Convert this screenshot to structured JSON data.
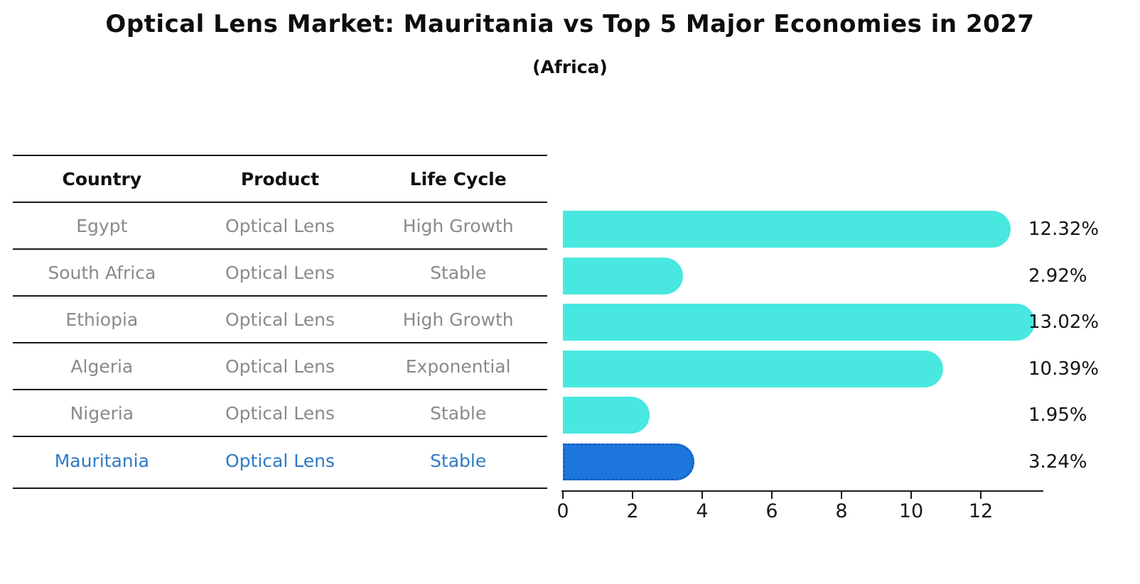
{
  "title": "Optical Lens Market: Mauritania vs Top 5 Major Economies in 2027",
  "subtitle": "(Africa)",
  "table": {
    "headers": [
      "Country",
      "Product",
      "Life Cycle"
    ],
    "rows": [
      {
        "country": "Egypt",
        "product": "Optical Lens",
        "life_cycle": "High Growth",
        "highlight": false
      },
      {
        "country": "South Africa",
        "product": "Optical Lens",
        "life_cycle": "Stable",
        "highlight": false
      },
      {
        "country": "Ethiopia",
        "product": "Optical Lens",
        "life_cycle": "High Growth",
        "highlight": false
      },
      {
        "country": "Algeria",
        "product": "Optical Lens",
        "life_cycle": "Exponential",
        "highlight": false
      },
      {
        "country": "Nigeria",
        "product": "Optical Lens",
        "life_cycle": "Stable",
        "highlight": false
      },
      {
        "country": "Mauritania",
        "product": "Optical Lens",
        "life_cycle": "Stable",
        "highlight": true
      }
    ]
  },
  "chart_data": {
    "type": "bar",
    "orientation": "horizontal",
    "title": "Optical Lens Market: Mauritania vs Top 5 Major Economies in 2027",
    "subtitle": "(Africa)",
    "categories": [
      "Egypt",
      "South Africa",
      "Ethiopia",
      "Algeria",
      "Nigeria",
      "Mauritania"
    ],
    "values": [
      12.32,
      2.92,
      13.02,
      10.39,
      1.95,
      3.24
    ],
    "value_labels": [
      "12.32%",
      "2.92%",
      "13.02%",
      "10.39%",
      "1.95%",
      "3.24%"
    ],
    "x_ticks": [
      0,
      2,
      4,
      6,
      8,
      10,
      12
    ],
    "xlim": [
      0,
      13.8
    ],
    "grid": false,
    "legend": "none",
    "highlight_index": 5,
    "bar_color": "#48e8e0",
    "highlight_bar_color": "#1c76db",
    "highlight_text_color": "#2e7ac6",
    "text_color_muted": "#8a8a8a",
    "axis_color": "#1a1a1a"
  }
}
